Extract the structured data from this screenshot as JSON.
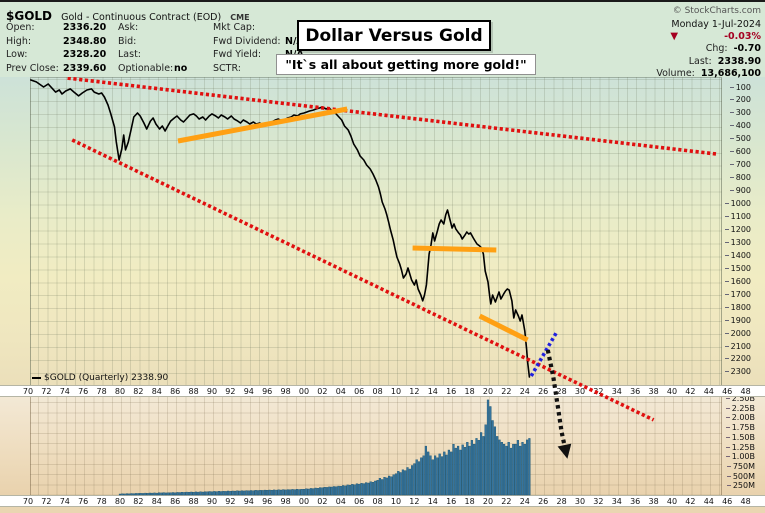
{
  "header": {
    "symbol": "$GOLD",
    "description": "Gold - Continuous Contract (EOD)",
    "exchange": "CME",
    "watermark": "© StockCharts.com",
    "date": "Monday 1-Jul-2024",
    "pct_change": "-0.03%",
    "down_triangle": "▼",
    "chg_label": "Chg:",
    "chg_value": "-0.70",
    "last_label": "Last:",
    "last_value": "2338.90",
    "volume_label": "Volume:",
    "volume_value": "13,686,100"
  },
  "quote": {
    "col1": [
      {
        "l": "Open:",
        "v": "2336.20"
      },
      {
        "l": "High:",
        "v": "2348.80"
      },
      {
        "l": "Low:",
        "v": "2328.20"
      },
      {
        "l": "Prev Close:",
        "v": "2339.60"
      }
    ],
    "col2": [
      {
        "l": "Ask:",
        "v": ""
      },
      {
        "l": "Bid:",
        "v": ""
      },
      {
        "l": "Last:",
        "v": ""
      },
      {
        "l": "Optionable:",
        "v": "no"
      }
    ],
    "col3": [
      {
        "l": "Mkt Cap:",
        "v": ""
      },
      {
        "l": "Fwd Dividend:",
        "v": "N/A"
      },
      {
        "l": "Fwd Yield:",
        "v": "N/A"
      },
      {
        "l": "SCTR:",
        "v": ""
      }
    ]
  },
  "overlay": {
    "title": "Dollar Versus Gold",
    "subtitle": "\"It`s all about getting more gold!\""
  },
  "legend": "$GOLD (Quarterly) 2338.90",
  "colors": {
    "price_line": "#000000",
    "trendline_red": "#e01010",
    "orange": "#ffa013",
    "blue": "#2020dd",
    "arrow_black": "#111111",
    "volume_fill": "#35749e",
    "volume_stroke": "#17506f",
    "negative": "#a50021"
  },
  "chart_data": {
    "type": "line",
    "title": "Dollar Versus Gold",
    "subtitle": "\"It`s all about getting more gold!\"",
    "series_name": "$GOLD (Quarterly)",
    "last_value": 2338.9,
    "y_axis": {
      "side": "right",
      "inverted": true,
      "min": 100,
      "max": 2300,
      "step": 100,
      "ticks": [
        "100",
        "200",
        "300",
        "400",
        "500",
        "600",
        "700",
        "800",
        "900",
        "1000",
        "1100",
        "1200",
        "1300",
        "1400",
        "1500",
        "1600",
        "1700",
        "1800",
        "1900",
        "2000",
        "2100",
        "2200",
        "2300"
      ],
      "tick_values": [
        100,
        200,
        300,
        400,
        500,
        600,
        700,
        800,
        900,
        1000,
        1100,
        1200,
        1300,
        1400,
        1500,
        1600,
        1700,
        1800,
        1900,
        2000,
        2100,
        2200,
        2300
      ]
    },
    "x_axis": {
      "start_year": 1970,
      "end_year": 2048,
      "step_years": 2,
      "tick_labels": [
        "70",
        "72",
        "74",
        "76",
        "78",
        "80",
        "82",
        "84",
        "86",
        "88",
        "90",
        "92",
        "94",
        "96",
        "98",
        "00",
        "02",
        "04",
        "06",
        "08",
        "10",
        "12",
        "14",
        "16",
        "18",
        "20",
        "22",
        "24",
        "26",
        "28",
        "30",
        "32",
        "34",
        "36",
        "38",
        "40",
        "42",
        "44",
        "46",
        "48"
      ]
    },
    "series": [
      {
        "name": "$GOLD quarterly close",
        "points": [
          [
            1970.3,
            46
          ],
          [
            1970.9,
            61
          ],
          [
            1971.7,
            100
          ],
          [
            1972.2,
            77
          ],
          [
            1973.0,
            139
          ],
          [
            1973.4,
            123
          ],
          [
            1973.7,
            154
          ],
          [
            1974.1,
            131
          ],
          [
            1974.6,
            115
          ],
          [
            1975.0,
            139
          ],
          [
            1975.5,
            169
          ],
          [
            1975.9,
            146
          ],
          [
            1976.4,
            123
          ],
          [
            1976.9,
            115
          ],
          [
            1977.2,
            139
          ],
          [
            1977.7,
            154
          ],
          [
            1978.0,
            146
          ],
          [
            1978.3,
            177
          ],
          [
            1978.7,
            239
          ],
          [
            1979.0,
            308
          ],
          [
            1979.4,
            409
          ],
          [
            1979.6,
            525
          ],
          [
            1979.9,
            664
          ],
          [
            1980.2,
            579
          ],
          [
            1980.4,
            471
          ],
          [
            1980.6,
            586
          ],
          [
            1980.9,
            525
          ],
          [
            1981.2,
            432
          ],
          [
            1981.5,
            332
          ],
          [
            1981.9,
            301
          ],
          [
            1982.2,
            324
          ],
          [
            1982.6,
            378
          ],
          [
            1982.9,
            424
          ],
          [
            1983.3,
            363
          ],
          [
            1983.6,
            339
          ],
          [
            1983.9,
            386
          ],
          [
            1984.3,
            424
          ],
          [
            1984.6,
            401
          ],
          [
            1984.9,
            440
          ],
          [
            1985.2,
            401
          ],
          [
            1985.5,
            363
          ],
          [
            1985.9,
            339
          ],
          [
            1986.2,
            324
          ],
          [
            1986.6,
            355
          ],
          [
            1986.9,
            370
          ],
          [
            1987.3,
            339
          ],
          [
            1987.6,
            316
          ],
          [
            1988.0,
            308
          ],
          [
            1988.3,
            324
          ],
          [
            1988.6,
            347
          ],
          [
            1989.0,
            332
          ],
          [
            1989.3,
            355
          ],
          [
            1989.7,
            324
          ],
          [
            1990.0,
            308
          ],
          [
            1990.4,
            324
          ],
          [
            1990.7,
            339
          ],
          [
            1991.0,
            316
          ],
          [
            1991.4,
            332
          ],
          [
            1991.7,
            347
          ],
          [
            1992.1,
            324
          ],
          [
            1992.4,
            347
          ],
          [
            1992.8,
            363
          ],
          [
            1993.1,
            378
          ],
          [
            1993.4,
            355
          ],
          [
            1993.8,
            370
          ],
          [
            1994.1,
            386
          ],
          [
            1994.5,
            370
          ],
          [
            1994.8,
            386
          ],
          [
            1995.2,
            378
          ],
          [
            1995.5,
            393
          ],
          [
            1995.8,
            378
          ],
          [
            1996.2,
            386
          ],
          [
            1996.5,
            370
          ],
          [
            1996.9,
            355
          ],
          [
            1997.2,
            347
          ],
          [
            1997.6,
            363
          ],
          [
            1997.9,
            355
          ],
          [
            1998.2,
            339
          ],
          [
            1998.6,
            332
          ],
          [
            1998.9,
            316
          ],
          [
            1999.3,
            324
          ],
          [
            1999.6,
            308
          ],
          [
            2000.0,
            301
          ],
          [
            2000.3,
            293
          ],
          [
            2000.6,
            285
          ],
          [
            2001.0,
            278
          ],
          [
            2001.3,
            270
          ],
          [
            2001.7,
            262
          ],
          [
            2002.0,
            254
          ],
          [
            2002.4,
            270
          ],
          [
            2002.7,
            262
          ],
          [
            2003.0,
            278
          ],
          [
            2003.4,
            301
          ],
          [
            2003.7,
            324
          ],
          [
            2004.1,
            355
          ],
          [
            2004.4,
            401
          ],
          [
            2004.8,
            432
          ],
          [
            2005.1,
            478
          ],
          [
            2005.4,
            540
          ],
          [
            2005.8,
            586
          ],
          [
            2006.1,
            633
          ],
          [
            2006.5,
            664
          ],
          [
            2006.8,
            702
          ],
          [
            2007.2,
            733
          ],
          [
            2007.5,
            772
          ],
          [
            2007.8,
            818
          ],
          [
            2008.1,
            872
          ],
          [
            2008.3,
            926
          ],
          [
            2008.5,
            988
          ],
          [
            2008.8,
            1042
          ],
          [
            2009.0,
            1088
          ],
          [
            2009.2,
            1142
          ],
          [
            2009.4,
            1204
          ],
          [
            2009.7,
            1281
          ],
          [
            2009.9,
            1351
          ],
          [
            2010.1,
            1413
          ],
          [
            2010.4,
            1467
          ],
          [
            2010.6,
            1513
          ],
          [
            2010.8,
            1575
          ],
          [
            2011.1,
            1544
          ],
          [
            2011.3,
            1498
          ],
          [
            2011.5,
            1544
          ],
          [
            2011.7,
            1590
          ],
          [
            2012.0,
            1629
          ],
          [
            2012.2,
            1590
          ],
          [
            2012.4,
            1660
          ],
          [
            2012.7,
            1706
          ],
          [
            2012.9,
            1752
          ],
          [
            2013.1,
            1706
          ],
          [
            2013.3,
            1629
          ],
          [
            2013.6,
            1390
          ],
          [
            2013.8,
            1320
          ],
          [
            2014.0,
            1227
          ],
          [
            2014.2,
            1289
          ],
          [
            2014.5,
            1212
          ],
          [
            2014.7,
            1158
          ],
          [
            2014.9,
            1127
          ],
          [
            2015.2,
            1158
          ],
          [
            2015.4,
            1088
          ],
          [
            2015.6,
            1050
          ],
          [
            2015.9,
            1135
          ],
          [
            2016.1,
            1189
          ],
          [
            2016.3,
            1158
          ],
          [
            2016.5,
            1196
          ],
          [
            2016.8,
            1227
          ],
          [
            2017.0,
            1243
          ],
          [
            2017.2,
            1274
          ],
          [
            2017.5,
            1243
          ],
          [
            2017.7,
            1220
          ],
          [
            2017.9,
            1235
          ],
          [
            2018.1,
            1227
          ],
          [
            2018.4,
            1266
          ],
          [
            2018.6,
            1289
          ],
          [
            2018.8,
            1312
          ],
          [
            2019.1,
            1328
          ],
          [
            2019.3,
            1343
          ],
          [
            2019.5,
            1390
          ],
          [
            2019.7,
            1521
          ],
          [
            2020.0,
            1606
          ],
          [
            2020.2,
            1722
          ],
          [
            2020.3,
            1776
          ],
          [
            2020.5,
            1706
          ],
          [
            2020.8,
            1760
          ],
          [
            2021.0,
            1722
          ],
          [
            2021.2,
            1683
          ],
          [
            2021.4,
            1737
          ],
          [
            2021.7,
            1699
          ],
          [
            2021.9,
            1675
          ],
          [
            2022.1,
            1660
          ],
          [
            2022.3,
            1668
          ],
          [
            2022.6,
            1752
          ],
          [
            2022.8,
            1884
          ],
          [
            2023.0,
            1822
          ],
          [
            2023.3,
            1868
          ],
          [
            2023.5,
            1907
          ],
          [
            2023.7,
            1861
          ],
          [
            2024.0,
            1984
          ],
          [
            2024.2,
            2123
          ],
          [
            2024.3,
            2223
          ],
          [
            2024.5,
            2339
          ]
        ]
      }
    ],
    "volume": {
      "unit": "millions",
      "start_year": 1980,
      "bar_step_years": 0.25,
      "ticks": [
        "2.50B",
        "2.25B",
        "2.00B",
        "1.75B",
        "1.50B",
        "1.25B",
        "1.00B",
        "750M",
        "500M",
        "250M"
      ],
      "tick_values": [
        2500,
        2250,
        2000,
        1750,
        1500,
        1250,
        1000,
        750,
        500,
        250
      ],
      "values": [
        25,
        30,
        28,
        35,
        32,
        38,
        35,
        42,
        40,
        45,
        42,
        50,
        45,
        52,
        48,
        55,
        50,
        58,
        54,
        62,
        55,
        60,
        58,
        65,
        60,
        68,
        64,
        72,
        66,
        74,
        70,
        78,
        72,
        80,
        76,
        84,
        78,
        86,
        82,
        90,
        85,
        92,
        88,
        96,
        90,
        98,
        94,
        102,
        96,
        104,
        100,
        108,
        102,
        110,
        106,
        114,
        108,
        116,
        112,
        120,
        115,
        122,
        118,
        126,
        120,
        128,
        124,
        132,
        126,
        134,
        130,
        138,
        132,
        140,
        136,
        144,
        138,
        146,
        142,
        150,
        150,
        160,
        155,
        170,
        165,
        180,
        175,
        190,
        185,
        200,
        195,
        210,
        205,
        220,
        215,
        230,
        225,
        245,
        235,
        260,
        255,
        275,
        265,
        290,
        280,
        305,
        295,
        320,
        310,
        340,
        330,
        360,
        380,
        430,
        400,
        460,
        440,
        490,
        470,
        520,
        550,
        610,
        580,
        650,
        630,
        710,
        670,
        760,
        810,
        910,
        860,
        960,
        1010,
        1260,
        1110,
        1010,
        910,
        1010,
        960,
        1060,
        990,
        1110,
        1030,
        1160,
        1110,
        1310,
        1210,
        1260,
        1160,
        1290,
        1230,
        1360,
        1260,
        1410,
        1310,
        1460,
        1410,
        1610,
        1510,
        1810,
        2450,
        2280,
        1920,
        1760,
        1510,
        1420,
        1360,
        1310,
        1260,
        1360,
        1210,
        1310,
        1310,
        1410,
        1260,
        1360,
        1310,
        1420,
        1460
      ]
    },
    "annotations": [
      {
        "name": "upper-resistance-trendline",
        "style": "dotted",
        "color": "#e01010",
        "width": 3.6,
        "dash": "3.2 2.6",
        "points": [
          [
            1974.3,
            31
          ],
          [
            2044.8,
            617
          ]
        ]
      },
      {
        "name": "lower-support-trendline",
        "style": "dotted",
        "color": "#e01010",
        "width": 3.6,
        "dash": "3.2 2.6",
        "points": [
          [
            1974.8,
            509
          ],
          [
            2038.0,
            2671
          ]
        ]
      },
      {
        "name": "orange-resistance-line-1",
        "style": "solid",
        "color": "#ffa013",
        "width": 5,
        "points": [
          [
            1986.3,
            517
          ],
          [
            2004.7,
            270
          ]
        ]
      },
      {
        "name": "orange-resistance-line-2",
        "style": "solid",
        "color": "#ffa013",
        "width": 5,
        "points": [
          [
            2011.8,
            1343
          ],
          [
            2020.9,
            1359
          ]
        ]
      },
      {
        "name": "orange-resistance-line-3",
        "style": "solid",
        "color": "#ffa013",
        "width": 5,
        "points": [
          [
            2019.1,
            1868
          ],
          [
            2024.3,
            2054
          ]
        ]
      },
      {
        "name": "blue-breakdown-line",
        "style": "dotted",
        "color": "#2020dd",
        "width": 3.6,
        "dash": "3 2.8",
        "points": [
          [
            2024.7,
            2332
          ],
          [
            2027.4,
            2000
          ]
        ]
      },
      {
        "name": "projection-arrow",
        "style": "dotted-arrow",
        "color": "#111111",
        "width": 4.2,
        "dash": "3.5 3.5",
        "points": [
          [
            2026.5,
            2131
          ],
          [
            2027.1,
            2339
          ],
          [
            2027.6,
            2571
          ],
          [
            2028.0,
            2764
          ],
          [
            2028.4,
            2895
          ]
        ]
      }
    ]
  }
}
